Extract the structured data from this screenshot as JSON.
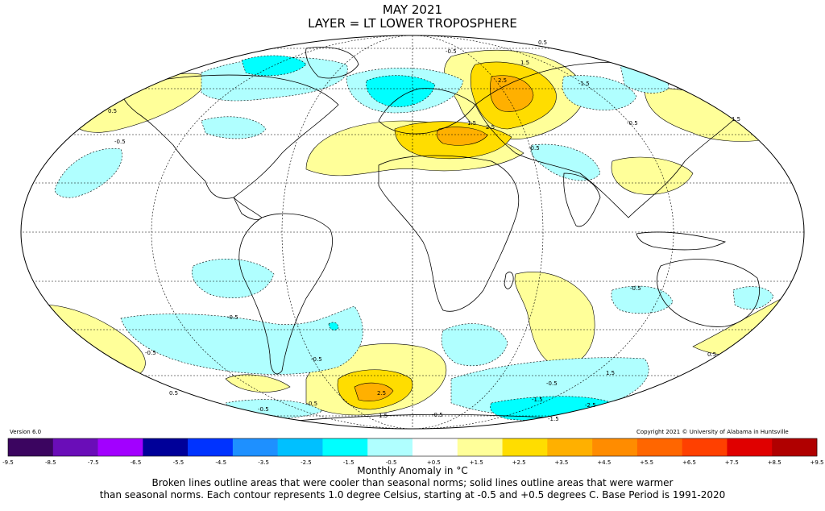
{
  "header": {
    "title": "MAY 2021",
    "subtitle": "LAYER = LT LOWER TROPOSPHERE"
  },
  "version": "Version 6.0",
  "copyright": "Copyright 2021 © University of Alabama in Huntsville",
  "contour_labels": [
    "0.5",
    "1.5",
    "2.5",
    "-0.5",
    "-1.5",
    "-2.5"
  ],
  "colorbar": {
    "colors": [
      "#3b0560",
      "#6a0db8",
      "#a200ff",
      "#000099",
      "#0033ff",
      "#1e90ff",
      "#00c0ff",
      "#00ffff",
      "#b0ffff",
      "#ffffff",
      "#ffff99",
      "#ffdd00",
      "#ffb000",
      "#ff8c00",
      "#ff6600",
      "#ff4000",
      "#e00000",
      "#b00000"
    ],
    "labels": [
      "-9.5",
      "-8.5",
      "-7.5",
      "-6.5",
      "-5.5",
      "-4.5",
      "-3.5",
      "-2.5",
      "-1.5",
      "-0.5",
      "+0.5",
      "+1.5",
      "+2.5",
      "+3.5",
      "+4.5",
      "+5.5",
      "+6.5",
      "+7.5",
      "+8.5",
      "+9.5"
    ],
    "units_label": "Monthly Anomaly in °C"
  },
  "caption": {
    "line1": "Broken lines outline areas that were cooler than seasonal norms; solid lines outline areas that were warmer",
    "line2": "than seasonal norms. Each contour represents 1.0 degree Celsius, starting at -0.5 and +0.5 degrees C. Base Period is 1991-2020"
  }
}
